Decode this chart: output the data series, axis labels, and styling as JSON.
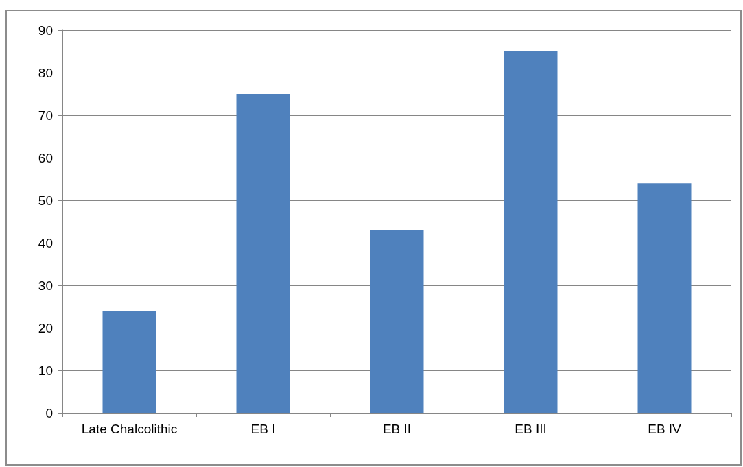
{
  "chart_data": {
    "type": "bar",
    "categories": [
      "Late Chalcolithic",
      "EB I",
      "EB II",
      "EB III",
      "EB IV"
    ],
    "values": [
      24,
      75,
      43,
      85,
      54
    ],
    "color": "#4f81bd",
    "ylim": [
      0,
      90
    ],
    "yticks": [
      0,
      10,
      20,
      30,
      40,
      50,
      60,
      70,
      80,
      90
    ],
    "grid": "y"
  }
}
